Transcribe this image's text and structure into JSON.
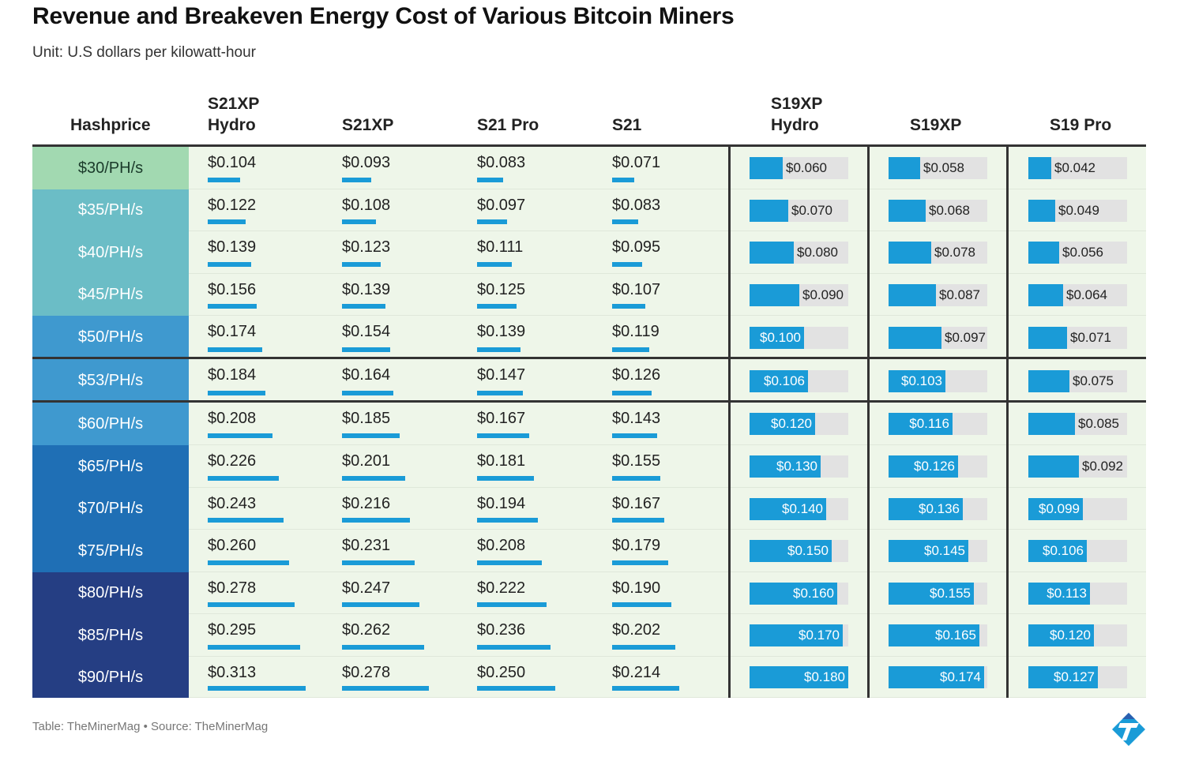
{
  "title": "Revenue and Breakeven Energy Cost of Various Bitcoin Miners",
  "subtitle": "Unit: U.S dollars per kilowatt-hour",
  "footer": {
    "credit": "Table: TheMinerMag • Source: TheMinerMag",
    "logo_icon": "theminermag-logo-icon"
  },
  "colors": {
    "bar": "#1a9bd7",
    "bar_track": "#e2e2e2",
    "cell_bg": "#eef6e9",
    "hashprice_bands": [
      "#a2d9b1",
      "#6bbdc6",
      "#6bbdc6",
      "#6bbdc6",
      "#3f99cf",
      "#3f99cf",
      "#3f99cf",
      "#1f6fb5",
      "#1f6fb5",
      "#1f6fb5",
      "#253e83",
      "#253e83",
      "#253e83"
    ]
  },
  "chart_data": {
    "type": "table",
    "title": "Revenue and Breakeven Energy Cost of Various Bitcoin Miners",
    "unit": "U.S dollars per kilowatt-hour",
    "row_header": "Hashprice",
    "columns": [
      {
        "name_lines": [
          "S21XP",
          "Hydro"
        ],
        "style": "underline-bar"
      },
      {
        "name_lines": [
          "S21XP"
        ],
        "style": "underline-bar"
      },
      {
        "name_lines": [
          "S21 Pro"
        ],
        "style": "underline-bar"
      },
      {
        "name_lines": [
          "S21"
        ],
        "style": "underline-bar"
      },
      {
        "name_lines": [
          "S19XP",
          "Hydro"
        ],
        "style": "box-bar"
      },
      {
        "name_lines": [
          "S19XP"
        ],
        "style": "box-bar"
      },
      {
        "name_lines": [
          "S19 Pro"
        ],
        "style": "box-bar"
      }
    ],
    "bar_scale_max": 0.313,
    "rows": [
      {
        "hashprice": "$30/PH/s",
        "values": [
          "$0.104",
          "$0.093",
          "$0.083",
          "$0.071",
          "$0.060",
          "$0.058",
          "$0.042"
        ]
      },
      {
        "hashprice": "$35/PH/s",
        "values": [
          "$0.122",
          "$0.108",
          "$0.097",
          "$0.083",
          "$0.070",
          "$0.068",
          "$0.049"
        ]
      },
      {
        "hashprice": "$40/PH/s",
        "values": [
          "$0.139",
          "$0.123",
          "$0.111",
          "$0.095",
          "$0.080",
          "$0.078",
          "$0.056"
        ]
      },
      {
        "hashprice": "$45/PH/s",
        "values": [
          "$0.156",
          "$0.139",
          "$0.125",
          "$0.107",
          "$0.090",
          "$0.087",
          "$0.064"
        ]
      },
      {
        "hashprice": "$50/PH/s",
        "values": [
          "$0.174",
          "$0.154",
          "$0.139",
          "$0.119",
          "$0.100",
          "$0.097",
          "$0.071"
        ]
      },
      {
        "hashprice": "$53/PH/s",
        "values": [
          "$0.184",
          "$0.164",
          "$0.147",
          "$0.126",
          "$0.106",
          "$0.103",
          "$0.075"
        ]
      },
      {
        "hashprice": "$60/PH/s",
        "values": [
          "$0.208",
          "$0.185",
          "$0.167",
          "$0.143",
          "$0.120",
          "$0.116",
          "$0.085"
        ]
      },
      {
        "hashprice": "$65/PH/s",
        "values": [
          "$0.226",
          "$0.201",
          "$0.181",
          "$0.155",
          "$0.130",
          "$0.126",
          "$0.092"
        ]
      },
      {
        "hashprice": "$70/PH/s",
        "values": [
          "$0.243",
          "$0.216",
          "$0.194",
          "$0.167",
          "$0.140",
          "$0.136",
          "$0.099"
        ]
      },
      {
        "hashprice": "$75/PH/s",
        "values": [
          "$0.260",
          "$0.231",
          "$0.208",
          "$0.179",
          "$0.150",
          "$0.145",
          "$0.106"
        ]
      },
      {
        "hashprice": "$80/PH/s",
        "values": [
          "$0.278",
          "$0.247",
          "$0.222",
          "$0.190",
          "$0.160",
          "$0.155",
          "$0.113"
        ]
      },
      {
        "hashprice": "$85/PH/s",
        "values": [
          "$0.295",
          "$0.262",
          "$0.236",
          "$0.202",
          "$0.170",
          "$0.165",
          "$0.120"
        ]
      },
      {
        "hashprice": "$90/PH/s",
        "values": [
          "$0.313",
          "$0.278",
          "$0.250",
          "$0.214",
          "$0.180",
          "$0.174",
          "$0.127"
        ]
      }
    ]
  }
}
